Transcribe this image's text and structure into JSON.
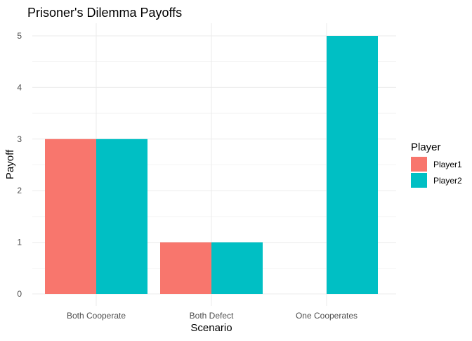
{
  "chart_data": {
    "type": "bar",
    "title": "Prisoner's Dilemma Payoffs",
    "xlabel": "Scenario",
    "ylabel": "Payoff",
    "categories": [
      "Both Cooperate",
      "Both Defect",
      "One Cooperates"
    ],
    "series": [
      {
        "name": "Player1",
        "color": "#F8766D",
        "values": [
          3,
          1,
          0
        ]
      },
      {
        "name": "Player2",
        "color": "#00BFC4",
        "values": [
          3,
          1,
          5
        ]
      }
    ],
    "yticks": [
      0,
      1,
      2,
      3,
      4,
      5
    ],
    "ylim": [
      0,
      5
    ],
    "grid": true,
    "legend": {
      "title": "Player",
      "position": "right"
    }
  }
}
